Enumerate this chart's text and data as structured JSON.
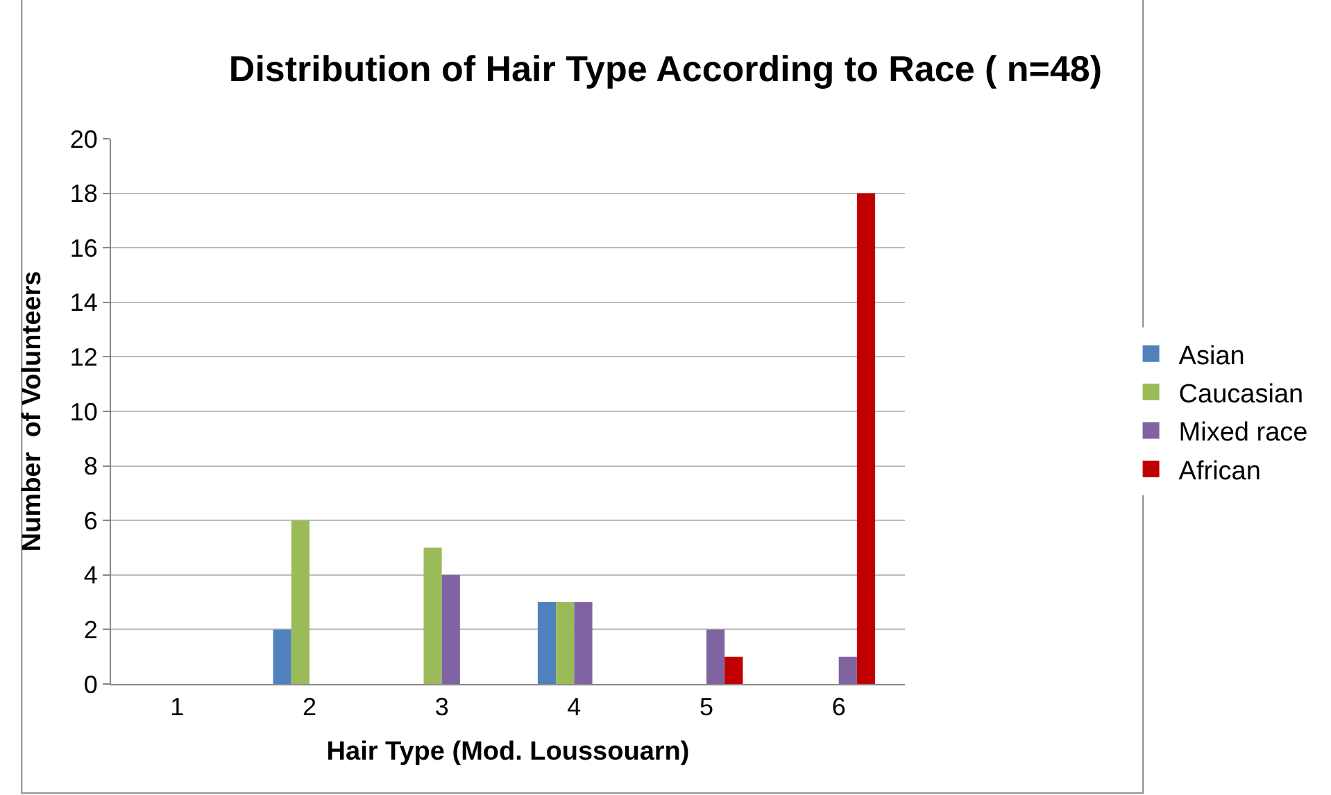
{
  "chart_data": {
    "type": "bar",
    "title": "Distribution of Hair Type According to Race ( n=48)",
    "xlabel": "Hair Type (Mod. Loussouarn)",
    "ylabel": "Number  of Volunteers",
    "categories": [
      "1",
      "2",
      "3",
      "4",
      "5",
      "6"
    ],
    "series": [
      {
        "name": "Asian",
        "color": "#4f81bd",
        "values": [
          0,
          2,
          0,
          3,
          0,
          0
        ]
      },
      {
        "name": "Caucasian",
        "color": "#9bbb59",
        "values": [
          0,
          6,
          5,
          3,
          0,
          0
        ]
      },
      {
        "name": "Mixed race",
        "color": "#8064a2",
        "values": [
          0,
          0,
          4,
          3,
          2,
          1
        ]
      },
      {
        "name": "African",
        "color": "#c00000",
        "values": [
          0,
          0,
          0,
          0,
          1,
          18
        ]
      }
    ],
    "ylim": [
      0,
      20
    ],
    "yticks": [
      0,
      2,
      4,
      6,
      8,
      10,
      12,
      14,
      16,
      18,
      20
    ],
    "grid": "y",
    "legend": "right"
  }
}
